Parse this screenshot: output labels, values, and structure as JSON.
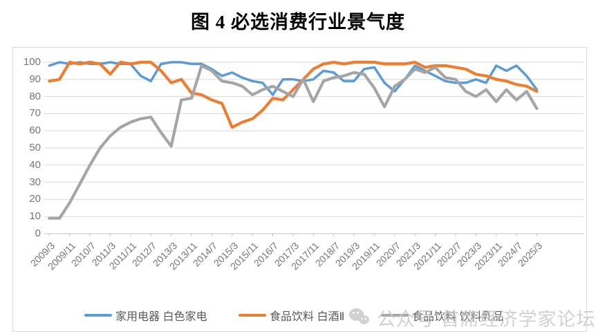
{
  "title": "图 4 必选消费行业景气度",
  "watermark": {
    "icon": "wechat-icon",
    "text": "公众号 首席经济学家论坛"
  },
  "colors": {
    "blue": "#5b9bd5",
    "orange": "#ed7d31",
    "gray": "#a5a5a5",
    "gridline": "#d9d9d9",
    "axis_line": "#c6c6c6",
    "tick_text": "#757575",
    "legend_text": "#595959",
    "watermark_gray": "#c9c9c9"
  },
  "chart_data": {
    "type": "line",
    "title": "图 4 必选消费行业景气度",
    "xlabel": "",
    "ylabel": "",
    "ylim": [
      0,
      100
    ],
    "y_ticks": [
      0,
      10,
      20,
      30,
      40,
      50,
      60,
      70,
      80,
      90,
      100
    ],
    "grid": "horizontal",
    "legend_position": "bottom",
    "x": [
      "2009/3",
      "2009/7",
      "2009/11",
      "2010/3",
      "2010/7",
      "2010/11",
      "2011/3",
      "2011/7",
      "2011/11",
      "2012/3",
      "2012/7",
      "2012/11",
      "2013/3",
      "2013/7",
      "2013/11",
      "2014/3",
      "2014/7",
      "2014/11",
      "2015/3",
      "2015/7",
      "2015/11",
      "2016/3",
      "2016/7",
      "2016/11",
      "2017/3",
      "2017/7",
      "2017/11",
      "2018/3",
      "2018/7",
      "2018/11",
      "2019/3",
      "2019/7",
      "2019/11",
      "2020/3",
      "2020/7",
      "2020/11",
      "2021/3",
      "2021/7",
      "2021/11",
      "2022/3",
      "2022/7",
      "2022/11",
      "2023/3",
      "2023/7",
      "2023/11",
      "2024/3",
      "2024/7",
      "2024/11",
      "2025/3"
    ],
    "x_tick_labels": [
      "2009/3",
      "2009/11",
      "2010/7",
      "2011/3",
      "2011/11",
      "2012/7",
      "2013/3",
      "2013/11",
      "2014/7",
      "2015/3",
      "2015/11",
      "2016/7",
      "2017/3",
      "2017/11",
      "2018/7",
      "2019/3",
      "2019/11",
      "2020/7",
      "2021/3",
      "2021/11",
      "2022/7",
      "2023/3",
      "2023/11",
      "2024/7",
      "2025/3"
    ],
    "x_tick_every": 2,
    "series": [
      {
        "name": "家用电器 白色家电",
        "color": "#5b9bd5",
        "values": [
          98,
          100,
          99,
          100,
          99,
          99,
          100,
          99,
          99,
          92,
          89,
          99,
          100,
          100,
          99,
          99,
          96,
          92,
          94,
          91,
          89,
          88,
          81,
          90,
          90,
          89,
          90,
          95,
          94,
          89,
          89,
          96,
          97,
          88,
          83,
          90,
          98,
          95,
          92,
          89,
          88,
          88,
          90,
          88,
          98,
          95,
          98,
          92,
          84
        ]
      },
      {
        "name": "食品饮料 白酒Ⅱ",
        "color": "#ed7d31",
        "values": [
          89,
          90,
          100,
          99,
          100,
          99,
          93,
          100,
          99,
          100,
          100,
          95,
          88,
          90,
          82,
          81,
          78,
          76,
          62,
          65,
          67,
          72,
          79,
          78,
          84,
          90,
          96,
          99,
          100,
          99,
          100,
          100,
          100,
          99,
          99,
          99,
          100,
          97,
          98,
          98,
          97,
          96,
          93,
          92,
          90,
          89,
          87,
          86,
          83
        ]
      },
      {
        "name": "食品饮料 饮料乳品",
        "color": "#a5a5a5",
        "values": [
          9,
          9,
          18,
          29,
          40,
          50,
          57,
          62,
          65,
          67,
          68,
          59,
          51,
          78,
          79,
          98,
          95,
          89,
          88,
          86,
          81,
          84,
          86,
          83,
          80,
          90,
          77,
          89,
          91,
          92,
          94,
          93,
          85,
          74,
          86,
          90,
          96,
          94,
          97,
          91,
          90,
          83,
          80,
          84,
          77,
          84,
          78,
          83,
          73
        ]
      }
    ]
  }
}
